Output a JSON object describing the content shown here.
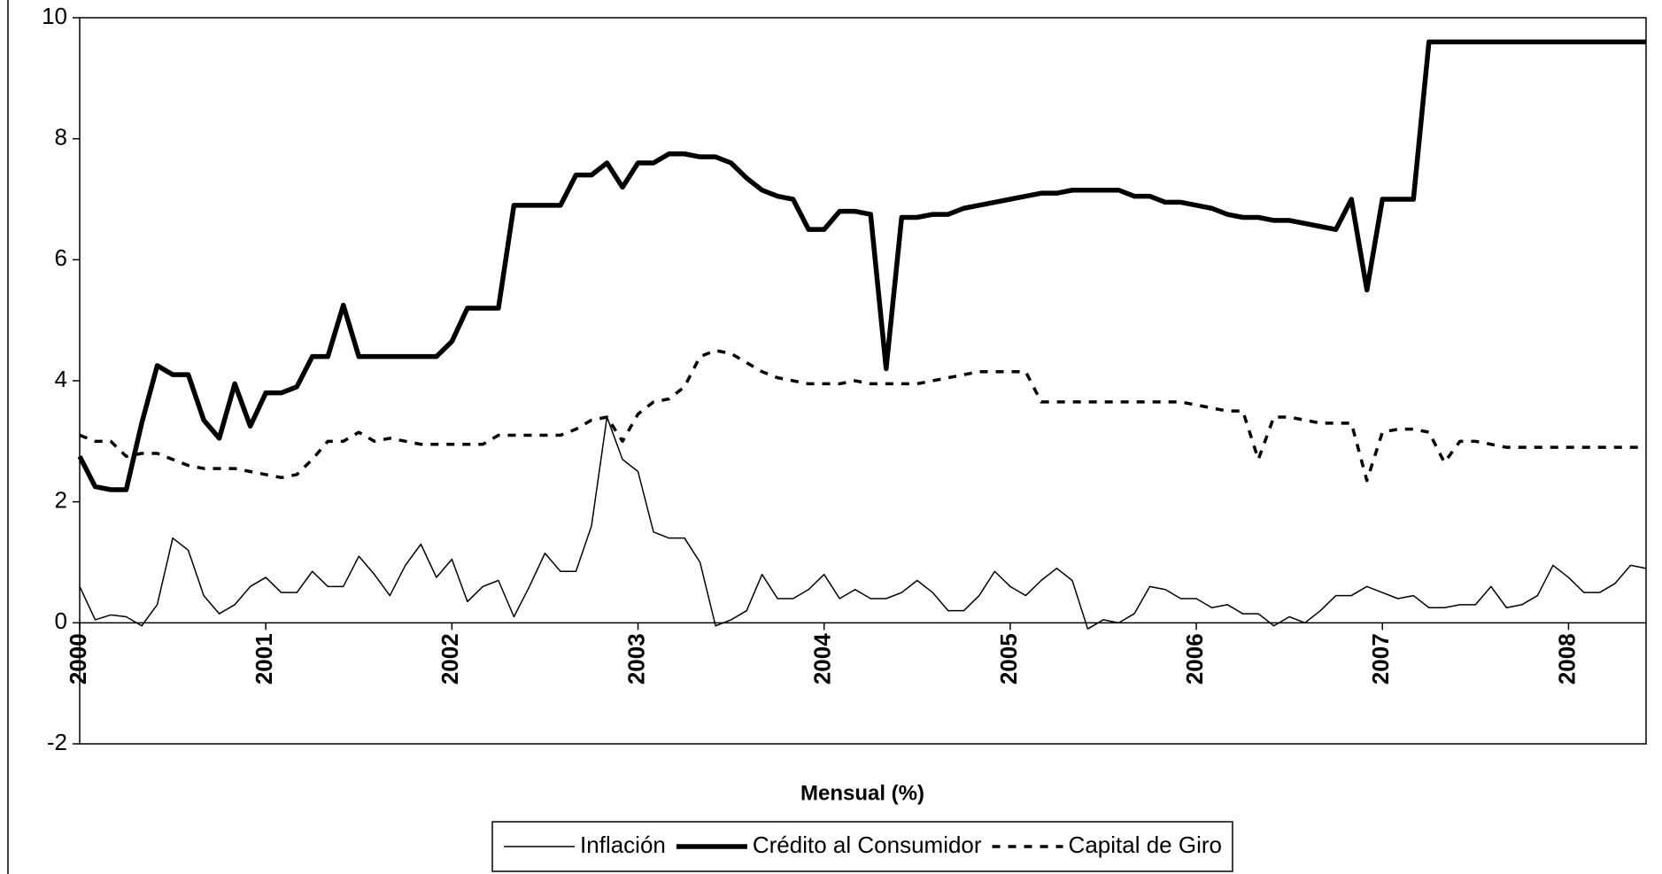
{
  "chart_data": {
    "type": "line",
    "title": "Mensual (%)",
    "categories": [
      "2000",
      null,
      null,
      null,
      null,
      null,
      null,
      null,
      null,
      null,
      null,
      null,
      "2001",
      null,
      null,
      null,
      null,
      null,
      null,
      null,
      null,
      null,
      null,
      null,
      "2002",
      null,
      null,
      null,
      null,
      null,
      null,
      null,
      null,
      null,
      null,
      null,
      "2003",
      null,
      null,
      null,
      null,
      null,
      null,
      null,
      null,
      null,
      null,
      null,
      "2004",
      null,
      null,
      null,
      null,
      null,
      null,
      null,
      null,
      null,
      null,
      null,
      "2005",
      null,
      null,
      null,
      null,
      null,
      null,
      null,
      null,
      null,
      null,
      null,
      "2006",
      null,
      null,
      null,
      null,
      null,
      null,
      null,
      null,
      null,
      null,
      null,
      "2007",
      null,
      null,
      null,
      null,
      null,
      null,
      null,
      null,
      null,
      null,
      null,
      "2008",
      null,
      null,
      null,
      null,
      null
    ],
    "series": [
      {
        "name": "Inflación",
        "color": "#000000",
        "width": 1.5,
        "dash": "none",
        "values": [
          0.6,
          0.05,
          0.13,
          0.1,
          -0.05,
          0.3,
          1.4,
          1.2,
          0.45,
          0.15,
          0.3,
          0.6,
          0.75,
          0.5,
          0.5,
          0.85,
          0.6,
          0.6,
          1.1,
          0.8,
          0.45,
          0.95,
          1.3,
          0.75,
          1.05,
          0.35,
          0.6,
          0.7,
          0.1,
          0.6,
          1.15,
          0.85,
          0.85,
          1.6,
          3.4,
          2.7,
          2.5,
          1.5,
          1.4,
          1.4,
          1.0,
          -0.05,
          0.05,
          0.2,
          0.8,
          0.4,
          0.4,
          0.55,
          0.8,
          0.4,
          0.55,
          0.4,
          0.4,
          0.5,
          0.7,
          0.5,
          0.2,
          0.2,
          0.45,
          0.85,
          0.6,
          0.45,
          0.7,
          0.9,
          0.7,
          -0.1,
          0.05,
          0,
          0.15,
          0.6,
          0.55,
          0.4,
          0.4,
          0.25,
          0.3,
          0.15,
          0.15,
          -0.05,
          0.1,
          0,
          0.2,
          0.45,
          0.45,
          0.6,
          0.5,
          0.4,
          0.45,
          0.25,
          0.25,
          0.3,
          0.3,
          0.6,
          0.25,
          0.3,
          0.45,
          0.95,
          0.75,
          0.5,
          0.5,
          0.65,
          0.95,
          0.9
        ]
      },
      {
        "name": "Crédito al Consumidor",
        "color": "#000000",
        "width": 5.5,
        "dash": "none",
        "values": [
          2.75,
          2.25,
          2.2,
          2.2,
          3.3,
          4.25,
          4.1,
          4.1,
          3.35,
          3.05,
          3.95,
          3.25,
          3.8,
          3.8,
          3.9,
          4.4,
          4.4,
          5.25,
          4.4,
          4.4,
          4.4,
          4.4,
          4.4,
          4.4,
          4.65,
          5.2,
          5.2,
          5.2,
          6.9,
          6.9,
          6.9,
          6.9,
          7.4,
          7.4,
          7.6,
          7.2,
          7.6,
          7.6,
          7.75,
          7.75,
          7.7,
          7.7,
          7.6,
          7.35,
          7.15,
          7.05,
          7.0,
          6.5,
          6.5,
          6.8,
          6.8,
          6.75,
          4.2,
          6.7,
          6.7,
          6.75,
          6.75,
          6.85,
          6.9,
          6.95,
          7.0,
          7.05,
          7.1,
          7.1,
          7.15,
          7.15,
          7.15,
          7.15,
          7.05,
          7.05,
          6.95,
          6.95,
          6.9,
          6.85,
          6.75,
          6.7,
          6.7,
          6.65,
          6.65,
          6.6,
          6.55,
          6.5,
          7.0,
          5.5,
          7.0,
          7.0,
          7.0,
          9.6,
          9.6,
          9.6,
          9.6,
          9.6,
          9.6,
          9.6,
          9.6,
          9.6,
          9.6,
          9.6,
          9.6,
          9.6,
          9.6,
          9.6
        ]
      },
      {
        "name": "Capital de Giro",
        "color": "#000000",
        "width": 3.5,
        "dash": "9,9",
        "values": [
          3.1,
          3.0,
          3.0,
          2.75,
          2.8,
          2.8,
          2.7,
          2.6,
          2.55,
          2.55,
          2.55,
          2.5,
          2.45,
          2.4,
          2.45,
          2.7,
          3.0,
          3.0,
          3.15,
          3.0,
          3.05,
          3.0,
          2.95,
          2.95,
          2.95,
          2.95,
          2.95,
          3.1,
          3.1,
          3.1,
          3.1,
          3.1,
          3.2,
          3.35,
          3.4,
          3.0,
          3.45,
          3.65,
          3.7,
          3.9,
          4.4,
          4.5,
          4.45,
          4.3,
          4.15,
          4.05,
          4.0,
          3.95,
          3.95,
          3.95,
          4.0,
          3.95,
          3.95,
          3.95,
          3.95,
          4.0,
          4.05,
          4.1,
          4.15,
          4.15,
          4.15,
          4.15,
          3.65,
          3.65,
          3.65,
          3.65,
          3.65,
          3.65,
          3.65,
          3.65,
          3.65,
          3.65,
          3.6,
          3.55,
          3.5,
          3.5,
          2.7,
          3.4,
          3.4,
          3.35,
          3.3,
          3.3,
          3.3,
          2.35,
          3.15,
          3.2,
          3.2,
          3.15,
          2.65,
          3.0,
          3.0,
          2.95,
          2.9,
          2.9,
          2.9,
          2.9,
          2.9,
          2.9,
          2.9,
          2.9,
          2.9,
          2.9
        ]
      }
    ],
    "ylim": [
      -2,
      10
    ],
    "yticks": [
      -2,
      0,
      2,
      4,
      6,
      8,
      10
    ],
    "grid": false,
    "legend": "bottom"
  }
}
